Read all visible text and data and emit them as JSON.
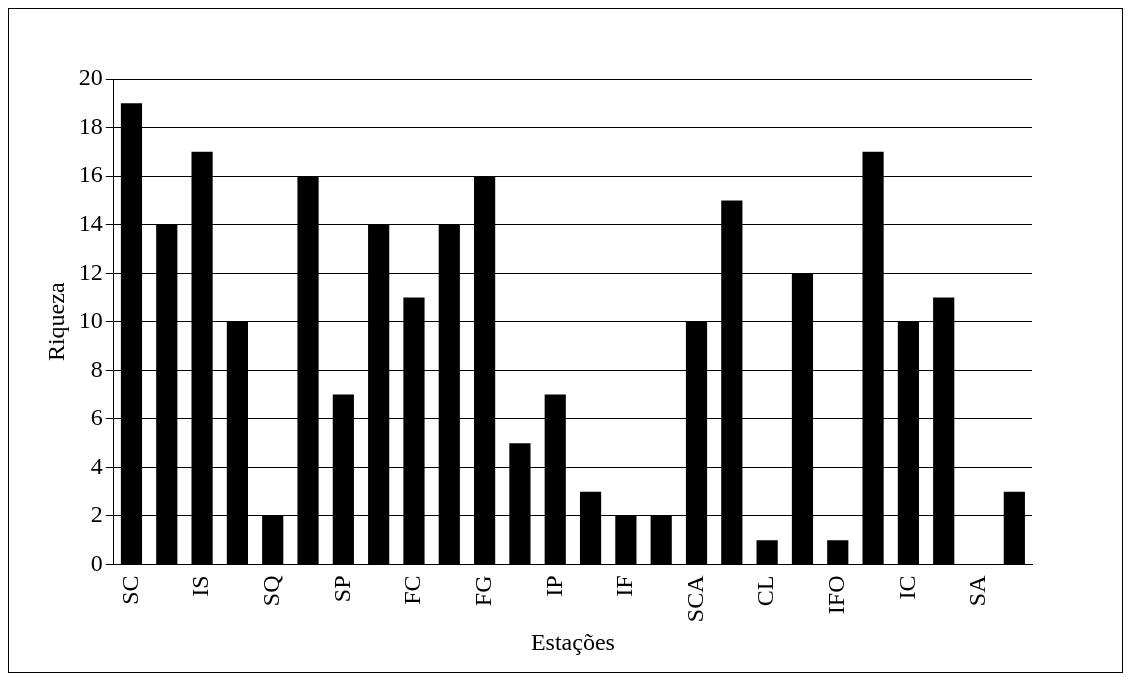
{
  "chart_data": {
    "type": "bar",
    "xlabel": "Estações",
    "ylabel": "Riqueza",
    "categories": [
      "SC",
      null,
      "IS",
      null,
      "SQ",
      null,
      "SP",
      null,
      "FC",
      null,
      "FG",
      null,
      "IP",
      null,
      "IF",
      null,
      "SCA",
      null,
      "CL",
      null,
      "IFO",
      null,
      "IC",
      null,
      "SA",
      null
    ],
    "values": [
      19,
      14,
      17,
      10,
      2,
      16,
      7,
      14,
      11,
      14,
      16,
      5,
      7,
      3,
      2,
      2,
      10,
      15,
      1,
      12,
      1,
      17,
      10,
      11,
      0,
      3
    ],
    "color": "#000000",
    "ylim": [
      0,
      20
    ],
    "yticks": [
      0,
      2,
      4,
      6,
      8,
      10,
      12,
      14,
      16,
      18,
      20
    ],
    "grid": "y",
    "legend": false
  }
}
